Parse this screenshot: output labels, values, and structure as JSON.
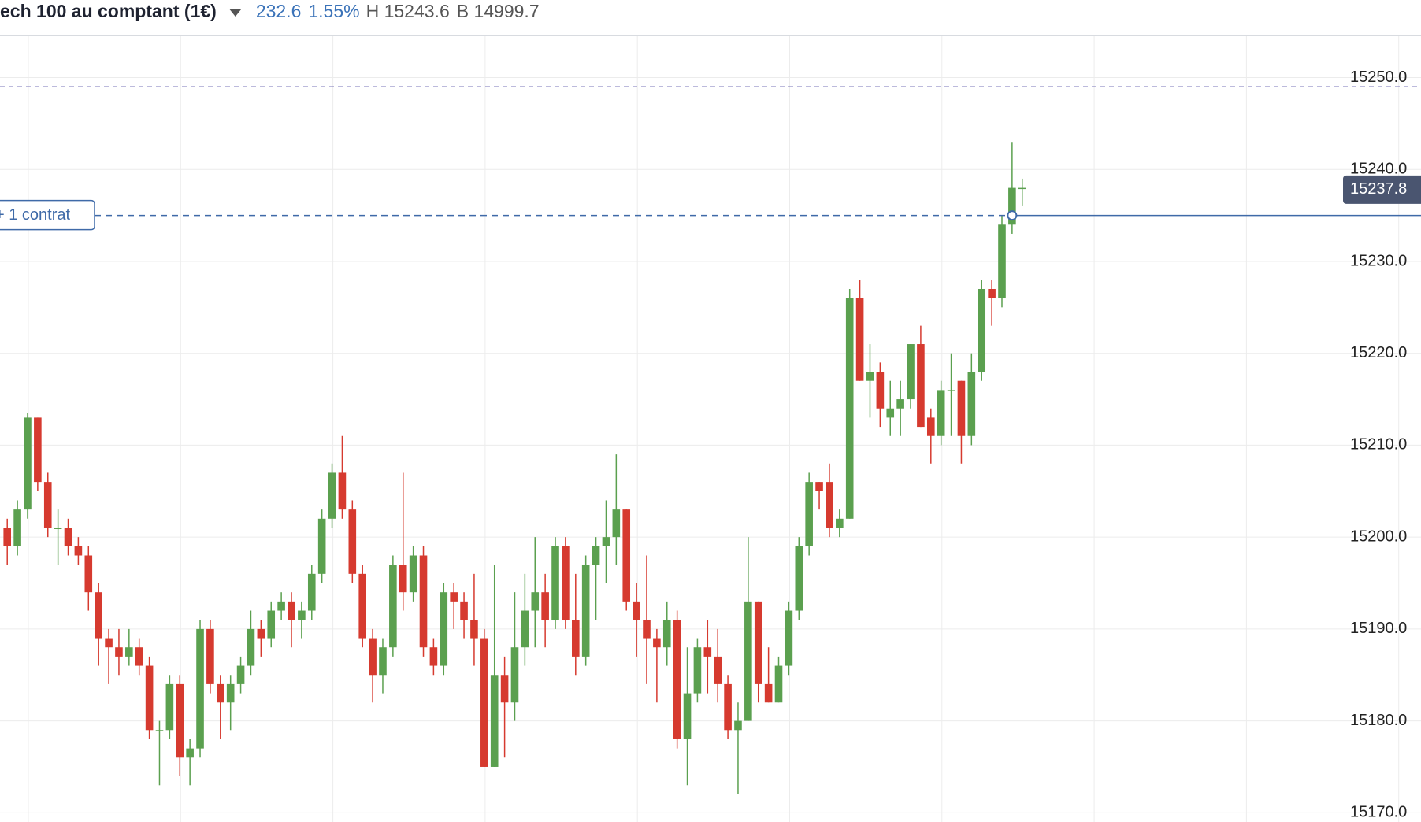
{
  "header": {
    "title": "ech 100 au comptant (1€)",
    "change": "232.6",
    "change_pct": "1.55%",
    "high": "H 15243.6",
    "low": "B 14999.7"
  },
  "chart_data": {
    "type": "candlestick",
    "open": [
      15201,
      15199,
      15203,
      15213,
      15206,
      15201,
      15201,
      15199,
      15198,
      15194,
      15189,
      15188,
      15187,
      15188,
      15186,
      15179,
      15179,
      15184,
      15176,
      15177,
      15190,
      15184,
      15182,
      15184,
      15186,
      15190,
      15189,
      15192,
      15193,
      15191,
      15192,
      15196,
      15202,
      15207,
      15203,
      15196,
      15189,
      15185,
      15188,
      15197,
      15194,
      15198,
      15188,
      15186,
      15194,
      15193,
      15191,
      15189,
      15175,
      15185,
      15182,
      15188,
      15192,
      15194,
      15191,
      15199,
      15191,
      15187,
      15197,
      15199,
      15200,
      15203,
      15193,
      15191,
      15189,
      15188,
      15191,
      15178,
      15183,
      15188,
      15187,
      15184,
      15179,
      15180,
      15193,
      15184,
      15182,
      15186,
      15192,
      15199,
      15206,
      15206,
      15201,
      15202,
      15226,
      15217,
      15218,
      15213,
      15214,
      15215,
      15221,
      15213,
      15211,
      15216,
      15217,
      15211,
      15218,
      15227,
      15226,
      15234,
      15238
    ],
    "high": [
      15202,
      15204,
      15213.5,
      15213,
      15207,
      15203,
      15202,
      15200,
      15199,
      15195,
      15190,
      15190,
      15190,
      15189,
      15187,
      15180,
      15185,
      15185,
      15178,
      15191,
      15191,
      15185,
      15185,
      15187,
      15192,
      15191,
      15193,
      15194,
      15194,
      15193,
      15197,
      15203,
      15208,
      15211,
      15204,
      15197,
      15190,
      15189,
      15198,
      15207,
      15199,
      15199,
      15189,
      15195,
      15195,
      15194,
      15196,
      15190,
      15197,
      15187,
      15194,
      15196,
      15200,
      15196,
      15200,
      15200,
      15196,
      15198,
      15200,
      15204,
      15209,
      15203,
      15195,
      15198,
      15190,
      15193,
      15192,
      15188,
      15189,
      15191,
      15190,
      15185,
      15182,
      15200,
      15193,
      15188,
      15187,
      15193,
      15200,
      15207,
      15206,
      15208,
      15203,
      15227,
      15228,
      15221,
      15219,
      15217,
      15217,
      15221,
      15223,
      15214,
      15217,
      15220,
      15217,
      15220,
      15228,
      15228,
      15235,
      15243,
      15239
    ],
    "low": [
      15197,
      15198,
      15202,
      15205,
      15200,
      15197,
      15198,
      15197,
      15192,
      15186,
      15184,
      15185,
      15186,
      15185,
      15178,
      15173,
      15178,
      15174,
      15173,
      15176,
      15183,
      15178,
      15179,
      15183,
      15185,
      15187,
      15188,
      15191,
      15188,
      15189,
      15191,
      15195,
      15201,
      15202,
      15195,
      15188,
      15182,
      15183,
      15187,
      15192,
      15193,
      15187,
      15185,
      15185,
      15190,
      15189,
      15186,
      15175,
      15175,
      15176,
      15180,
      15186,
      15188,
      15188,
      15190,
      15190,
      15185,
      15186,
      15191,
      15195,
      15197,
      15192,
      15187,
      15184,
      15182,
      15186,
      15177,
      15173,
      15182,
      15183,
      15182,
      15178,
      15172,
      15180,
      15182,
      15182,
      15182,
      15185,
      15191,
      15198,
      15203,
      15200,
      15200,
      15202,
      15217,
      15213,
      15212,
      15211,
      15211,
      15214,
      15212,
      15208,
      15210,
      15211,
      15208,
      15210,
      15217,
      15223,
      15225,
      15233,
      15236
    ],
    "close": [
      15199,
      15203,
      15213,
      15206,
      15201,
      15201,
      15199,
      15198,
      15194,
      15189,
      15188,
      15187,
      15188,
      15186,
      15179,
      15179,
      15184,
      15176,
      15177,
      15190,
      15184,
      15182,
      15184,
      15186,
      15190,
      15189,
      15192,
      15193,
      15191,
      15192,
      15196,
      15202,
      15207,
      15203,
      15196,
      15189,
      15185,
      15188,
      15197,
      15194,
      15198,
      15188,
      15186,
      15194,
      15193,
      15191,
      15189,
      15175,
      15185,
      15182,
      15188,
      15192,
      15194,
      15191,
      15199,
      15191,
      15187,
      15197,
      15199,
      15200,
      15203,
      15193,
      15191,
      15189,
      15188,
      15191,
      15178,
      15183,
      15188,
      15187,
      15184,
      15179,
      15180,
      15193,
      15184,
      15182,
      15186,
      15192,
      15199,
      15206,
      15205,
      15201,
      15202,
      15226,
      15217,
      15218,
      15214,
      15214,
      15215,
      15221,
      15212,
      15211,
      15216,
      15216,
      15211,
      15218,
      15227,
      15226,
      15234,
      15238,
      15238
    ],
    "up_color": "#5ba04f",
    "down_color": "#d63a2f",
    "ylim": [
      15169,
      15254.5
    ],
    "yticks": [
      {
        "value": 15170,
        "label": "15170.0"
      },
      {
        "value": 15180,
        "label": "15180.0"
      },
      {
        "value": 15190,
        "label": "15190.0"
      },
      {
        "value": 15200,
        "label": "15200.0"
      },
      {
        "value": 15210,
        "label": "15210.0"
      },
      {
        "value": 15220,
        "label": "15220.0"
      },
      {
        "value": 15230,
        "label": "15230.0"
      },
      {
        "value": 15240,
        "label": "15240.0"
      },
      {
        "value": 15250,
        "label": "15250.0"
      }
    ],
    "grid": true,
    "last_price": {
      "value": 15237.8,
      "label": "15237.8"
    },
    "order_line": {
      "value": 15235,
      "label": "+ 1 contrat"
    },
    "level_line": {
      "value": 15249
    }
  }
}
